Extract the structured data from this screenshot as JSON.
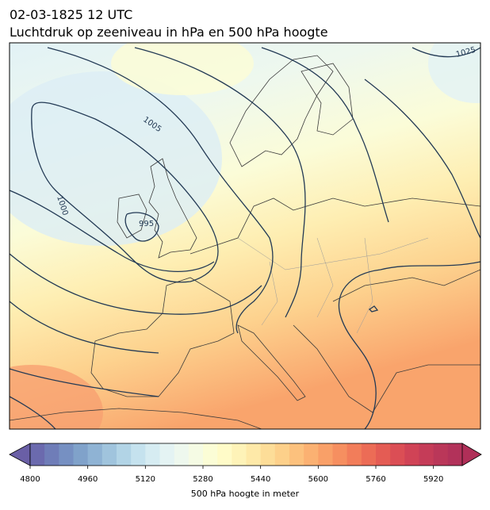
{
  "header": {
    "title": "02-03-1825 12 UTC",
    "subtitle": "Luchtdruk op zeeniveau in hPa en 500 hPa hoogte"
  },
  "map": {
    "contour_labels": [
      "1005",
      "1000",
      "995",
      "1025"
    ]
  },
  "colorbar": {
    "label": "500 hPa hoogte in meter",
    "lim": [
      4800,
      6000
    ],
    "ticks": [
      4800,
      4960,
      5120,
      5280,
      5440,
      5600,
      5760,
      5920
    ],
    "colors": [
      "#6b6aae",
      "#6f7db8",
      "#7690c2",
      "#80a2ca",
      "#8fb3d4",
      "#a0c4dd",
      "#b2d4e6",
      "#c5e2ee",
      "#d6ecf2",
      "#e4f3f3",
      "#eef8ee",
      "#f5fbe4",
      "#fbfdd6",
      "#fffbc8",
      "#fef3b8",
      "#fee9a8",
      "#fddd98",
      "#fdd08a",
      "#fcc17d",
      "#fbb172",
      "#f9a068",
      "#f68f60",
      "#f27d5a",
      "#ec6c56",
      "#e45c54",
      "#db4e55",
      "#d04356",
      "#c53c58",
      "#ba3759",
      "#b2325a"
    ]
  }
}
